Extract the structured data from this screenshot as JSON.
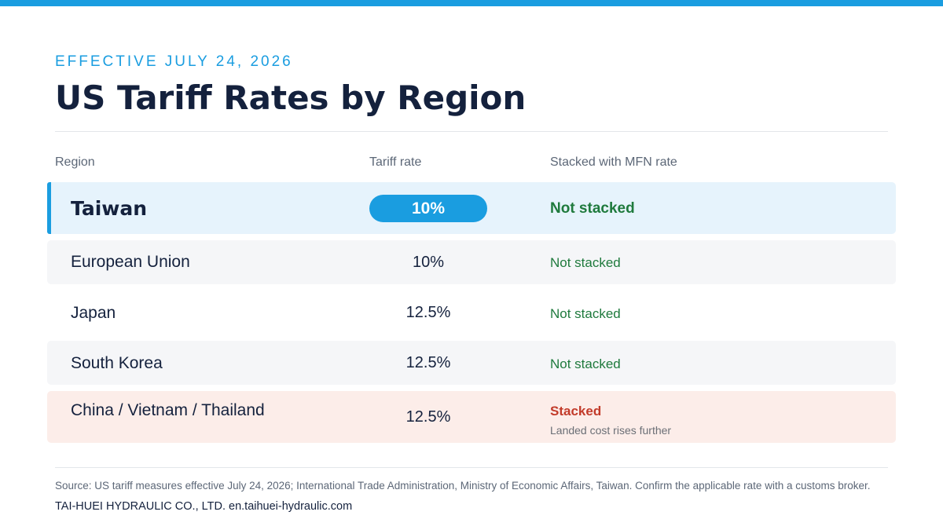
{
  "header": {
    "eyebrow": "EFFECTIVE JULY 24, 2026",
    "title": "US Tariff Rates by Region"
  },
  "table": {
    "columns": [
      "Region",
      "Tariff rate",
      "Stacked with MFN rate"
    ],
    "rows": [
      {
        "region": "Taiwan",
        "rate": "10%",
        "stacked": "Not stacked",
        "highlighted": true
      },
      {
        "region": "European Union",
        "rate": "10%",
        "stacked": "Not stacked"
      },
      {
        "region": "Japan",
        "rate": "12.5%",
        "stacked": "Not stacked"
      },
      {
        "region": "South Korea",
        "rate": "12.5%",
        "stacked": "Not stacked"
      },
      {
        "region": "China / Vietnam / Thailand",
        "rate": "12.5%",
        "stacked": "Stacked",
        "note": "Landed cost rises further"
      }
    ]
  },
  "footer": {
    "source": "Source: US tariff measures effective July 24, 2026; International Trade Administration, Ministry of Economic Affairs, Taiwan. Confirm the applicable rate with a customs broker.",
    "company": "TAI-HUEI HYDRAULIC CO., LTD. en.taihuei-hydraulic.com"
  },
  "colors": {
    "accent": "#1a9de0",
    "highlight_row": "#e6f3fc",
    "not_stacked": "#1f7a3d",
    "stacked": "#c23b2a",
    "stacked_row": "#fcede9"
  }
}
